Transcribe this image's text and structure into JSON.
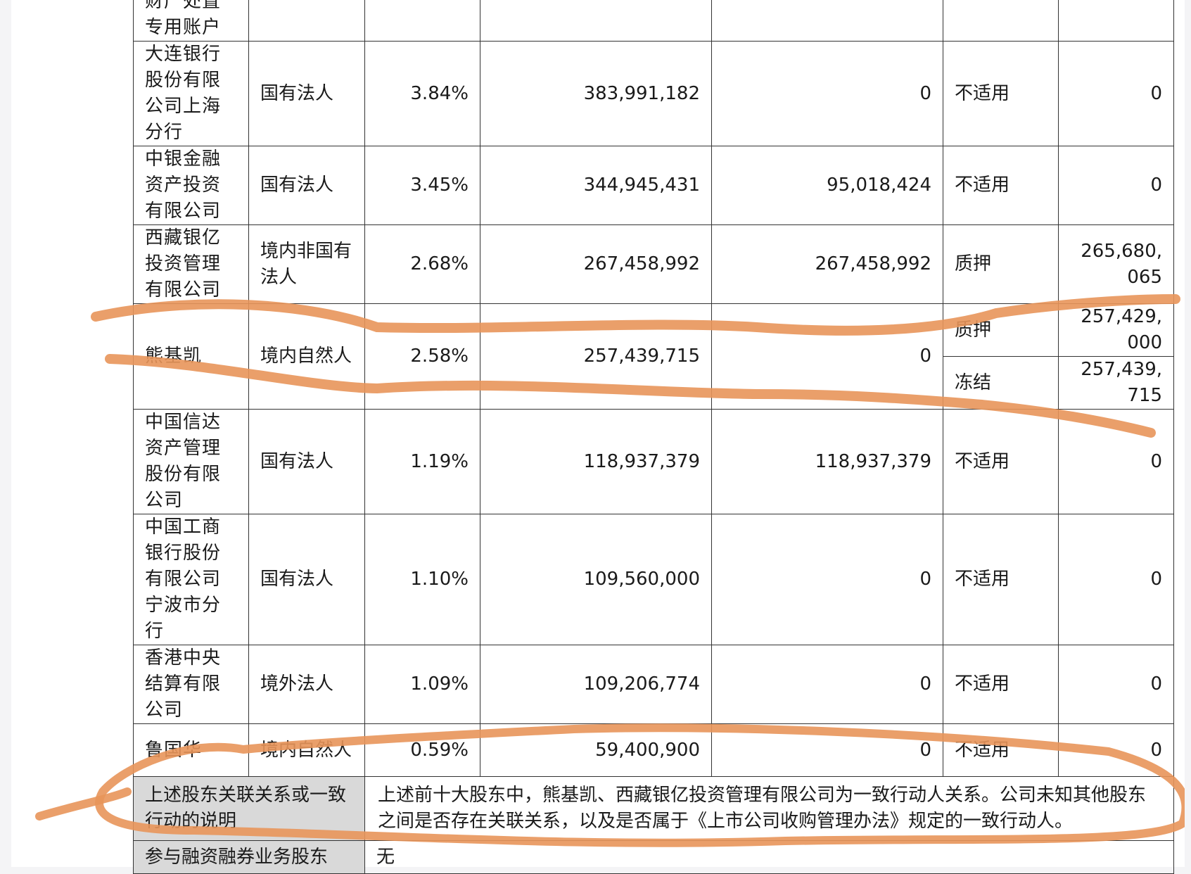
{
  "rows": [
    {
      "name": "财产处置专用账户",
      "type": "",
      "pct": "",
      "shares": "",
      "restricted": "",
      "status": "",
      "amount": ""
    },
    {
      "name": "大连银行股份有限公司上海分行",
      "type": "国有法人",
      "pct": "3.84%",
      "shares": "383,991,182",
      "restricted": "0",
      "status": "不适用",
      "amount": "0"
    },
    {
      "name": "中银金融资产投资有限公司",
      "type": "国有法人",
      "pct": "3.45%",
      "shares": "344,945,431",
      "restricted": "95,018,424",
      "status": "不适用",
      "amount": "0"
    },
    {
      "name": "西藏银亿投资管理有限公司",
      "type": "境内非国有法人",
      "pct": "2.68%",
      "shares": "267,458,992",
      "restricted": "267,458,992",
      "status": "质押",
      "amount": "265,680,065"
    },
    {
      "name": "熊基凯",
      "type": "境内自然人",
      "pct": "2.58%",
      "shares": "257,439,715",
      "restricted": "0",
      "status": "质押",
      "amount": "257,429,000",
      "status2": "冻结",
      "amount2": "257,439,715"
    },
    {
      "name": "中国信达资产管理股份有限公司",
      "type": "国有法人",
      "pct": "1.19%",
      "shares": "118,937,379",
      "restricted": "118,937,379",
      "status": "不适用",
      "amount": "0"
    },
    {
      "name": "中国工商银行股份有限公司宁波市分行",
      "type": "国有法人",
      "pct": "1.10%",
      "shares": "109,560,000",
      "restricted": "0",
      "status": "不适用",
      "amount": "0"
    },
    {
      "name": "香港中央结算有限公司",
      "type": "境外法人",
      "pct": "1.09%",
      "shares": "109,206,774",
      "restricted": "0",
      "status": "不适用",
      "amount": "0"
    },
    {
      "name": "鲁国华",
      "type": "境内自然人",
      "pct": "0.59%",
      "shares": "59,400,900",
      "restricted": "0",
      "status": "不适用",
      "amount": "0"
    }
  ],
  "relation": {
    "label": "上述股东关联关系或一致行动的说明",
    "text": "上述前十大股东中，熊基凯、西藏银亿投资管理有限公司为一致行动人关系。公司未知其他股东之间是否存在关联关系，以及是否属于《上市公司收购管理办法》规定的一致行动人。"
  },
  "margin_trading": {
    "label": "参与融资融券业务股东",
    "value": "无"
  },
  "annotation_color": "#e8955a"
}
